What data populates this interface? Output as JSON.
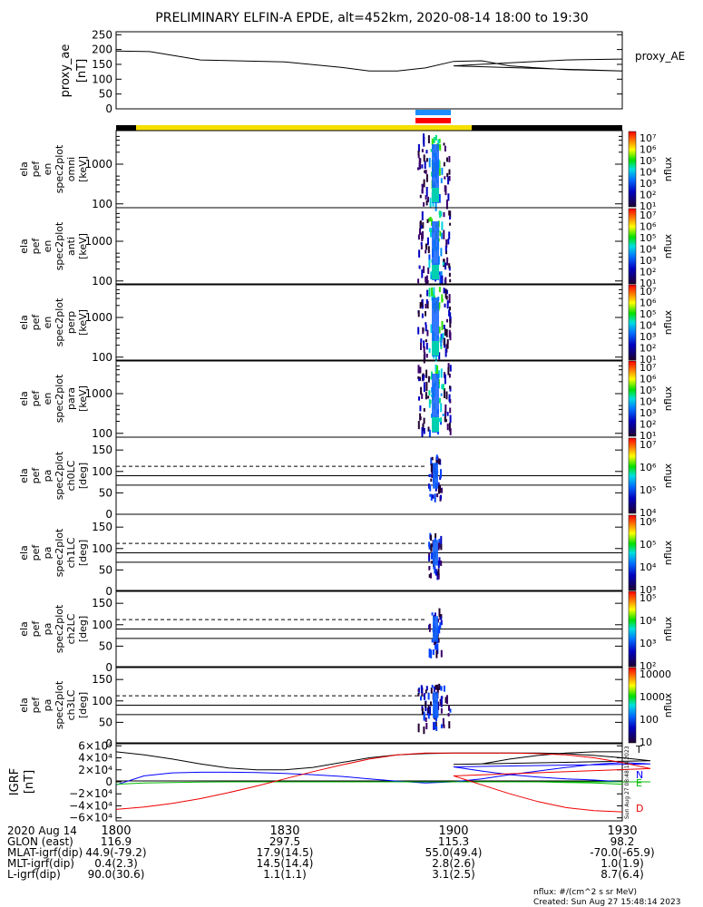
{
  "title": "PRELIMINARY ELFIN-A EPDE, alt=452km, 2020-08-14 18:00 to 19:30",
  "colors": {
    "sunlit_bar": "#f5e000",
    "shadow_bar": "#000000",
    "science_blue": "#1a8cff",
    "science_red": "#ff0000",
    "igrf_n": "#0000ff",
    "igrf_e": "#00bb00",
    "igrf_d": "#ee0000",
    "igrf_total": "#000000"
  },
  "colorbar_labels": {
    "energy_flux": [
      "10⁷",
      "10⁶",
      "10⁵",
      "10⁴",
      "10³",
      "10²",
      "10¹"
    ],
    "pa_ch0": [
      "10⁷",
      "10⁶",
      "10⁵",
      "10⁴"
    ],
    "pa_ch1": [
      "10⁶",
      "10⁵",
      "10⁴",
      "10³"
    ],
    "pa_ch2": [
      "10⁵",
      "10⁴",
      "10³",
      "10²"
    ],
    "pa_ch3": [
      "10000",
      "1000",
      "100",
      "10"
    ],
    "unit": "nflux"
  },
  "chart_data": [
    {
      "type": "line",
      "name": "proxy_ae",
      "ylabel": "proxy_ae [nT]",
      "legend": "proxy_AE",
      "ylim": [
        0,
        260
      ],
      "yticks": [
        "250",
        "200",
        "150",
        "100",
        "50",
        "0"
      ],
      "x": [
        1800,
        1806,
        1815,
        1830,
        1840,
        1845,
        1850,
        1855,
        1860,
        1865,
        1870,
        1875,
        1880,
        1890,
        1900,
        1910,
        1920,
        1930
      ],
      "values": [
        195,
        193,
        165,
        158,
        140,
        128,
        128,
        138,
        160,
        162,
        145,
        138,
        132,
        128,
        145,
        155,
        165,
        168
      ]
    },
    {
      "type": "heatmap",
      "name": "spec2plot_omni",
      "ylabel_lines": [
        "ela",
        "pef",
        "en",
        "spec2plot",
        "omni",
        "[keV]"
      ],
      "y_scale": "log",
      "yticks": [
        "1000",
        "100"
      ],
      "x_range": [
        1868,
        1870
      ],
      "y_range_keV": [
        80,
        7000
      ]
    },
    {
      "type": "heatmap",
      "name": "spec2plot_anti",
      "ylabel_lines": [
        "ela",
        "pef",
        "en",
        "spec2plot",
        "anti",
        "[keV]"
      ],
      "y_scale": "log",
      "yticks": [
        "1000",
        "100"
      ],
      "x_range": [
        1868,
        1870
      ],
      "y_range_keV": [
        80,
        7000
      ]
    },
    {
      "type": "heatmap",
      "name": "spec2plot_perp",
      "ylabel_lines": [
        "ela",
        "pef",
        "en",
        "spec2plot",
        "perp",
        "[keV]"
      ],
      "y_scale": "log",
      "yticks": [
        "1000",
        "100"
      ],
      "x_range": [
        1868,
        1870
      ],
      "y_range_keV": [
        80,
        7000
      ]
    },
    {
      "type": "heatmap",
      "name": "spec2plot_para",
      "ylabel_lines": [
        "ela",
        "pef",
        "en",
        "spec2plot",
        "para",
        "[keV]"
      ],
      "y_scale": "log",
      "yticks": [
        "1000",
        "100"
      ],
      "x_range": [
        1868,
        1870
      ],
      "y_range_keV": [
        80,
        7000
      ]
    },
    {
      "type": "heatmap",
      "name": "spec2plot_ch0LC",
      "ylabel_lines": [
        "ela",
        "pef",
        "pa",
        "spec2plot",
        "ch0LC",
        "[deg]"
      ],
      "yticks": [
        "150",
        "100",
        "50",
        "0"
      ],
      "ylim": [
        0,
        180
      ],
      "ref_lines_deg": {
        "dashed": 112,
        "solid": [
          90,
          68
        ]
      }
    },
    {
      "type": "heatmap",
      "name": "spec2plot_ch1LC",
      "ylabel_lines": [
        "ela",
        "pef",
        "pa",
        "spec2plot",
        "ch1LC",
        "[deg]"
      ],
      "yticks": [
        "150",
        "100",
        "50",
        "0"
      ],
      "ylim": [
        0,
        180
      ],
      "ref_lines_deg": {
        "dashed": 112,
        "solid": [
          90,
          68
        ]
      }
    },
    {
      "type": "heatmap",
      "name": "spec2plot_ch2LC",
      "ylabel_lines": [
        "ela",
        "pef",
        "pa",
        "spec2plot",
        "ch2LC",
        "[deg]"
      ],
      "yticks": [
        "150",
        "100",
        "50",
        "0"
      ],
      "ylim": [
        0,
        180
      ],
      "ref_lines_deg": {
        "dashed": 112,
        "solid": [
          90,
          68
        ]
      }
    },
    {
      "type": "heatmap",
      "name": "spec2plot_ch3LC",
      "ylabel_lines": [
        "ela",
        "pef",
        "pa",
        "spec2plot",
        "ch3LC",
        "[deg]"
      ],
      "yticks": [
        "150",
        "100",
        "50",
        "0"
      ],
      "ylim": [
        0,
        180
      ],
      "ref_lines_deg": {
        "dashed": 112,
        "solid": [
          90,
          68
        ]
      }
    },
    {
      "type": "line",
      "name": "igrf",
      "ylabel": "IGRF [nT]",
      "yticks": [
        "6×10⁴",
        "4×10⁴",
        "2×10⁴",
        "0",
        "−2×10⁴",
        "−4×10⁴",
        "−6×10⁴"
      ],
      "ylim": [
        -65000,
        65000
      ],
      "x": [
        1800,
        1805,
        1810,
        1815,
        1820,
        1825,
        1830,
        1835,
        1840,
        1845,
        1850,
        1855,
        1860,
        1865,
        1870,
        1875,
        1880,
        1885,
        1890,
        1895,
        1900,
        1905,
        1910,
        1915,
        1920,
        1925,
        1930
      ],
      "series": [
        {
          "name": "T",
          "values": [
            50000,
            45000,
            38000,
            30000,
            23000,
            20000,
            20000,
            24000,
            32000,
            40000,
            45000,
            47000,
            48000,
            48000,
            48000,
            48000,
            47000,
            44000,
            40000,
            35000,
            29000,
            30000,
            38000,
            44000,
            48000,
            50000,
            50000
          ]
        },
        {
          "name": "N",
          "values": [
            -5000,
            10000,
            15000,
            16000,
            16000,
            15500,
            14000,
            12000,
            9000,
            5000,
            1000,
            -2000,
            0,
            5000,
            12000,
            18000,
            24000,
            29000,
            32000,
            30000,
            25000,
            18000,
            12000,
            8000,
            5000,
            3000,
            0
          ]
        },
        {
          "name": "E",
          "values": [
            -4000,
            -2000,
            -1000,
            -500,
            0,
            0,
            0,
            0,
            0,
            0,
            0,
            0,
            0,
            0,
            0,
            0,
            0,
            0,
            0,
            0,
            0,
            0,
            0,
            0,
            -1000,
            -2000,
            -4000
          ]
        },
        {
          "name": "D",
          "values": [
            -46000,
            -42000,
            -36000,
            -28000,
            -18000,
            -7000,
            5000,
            17000,
            28000,
            38000,
            45000,
            48000,
            48000,
            48000,
            48000,
            47000,
            45000,
            40000,
            32000,
            22000,
            10000,
            -5000,
            -20000,
            -33000,
            -43000,
            -48000,
            -50000
          ]
        }
      ]
    }
  ],
  "xaxis": {
    "tick_labels": [
      "1800",
      "1830",
      "1900",
      "1930"
    ],
    "rows": [
      {
        "label": "2020 Aug 14",
        "values": [
          "",
          "",
          "",
          ""
        ]
      },
      {
        "label": "GLON (east)",
        "values": [
          "116.9",
          "297.5",
          "115.3",
          "98.2"
        ]
      },
      {
        "label": "MLAT-igrf(dip)",
        "values": [
          "44.9(-79.2)",
          "17.9(14.5)",
          "55.0(49.4)",
          "-70.0(-65.9)"
        ]
      },
      {
        "label": "MLT-igrf(dip)",
        "values": [
          "0.4(2.3)",
          "14.5(14.4)",
          "2.8(2.6)",
          "1.0(1.9)"
        ]
      },
      {
        "label": "L-igrf(dip)",
        "values": [
          "90.0(30.6)",
          "1.1(1.1)",
          "3.1(2.5)",
          "8.7(6.4)"
        ]
      }
    ]
  },
  "igrf_side_text": "Sun Aug 27 08:48:14 2023",
  "footer": {
    "units": "nflux: #/(cm^2 s sr MeV)",
    "created": "Created: Sun Aug 27 15:48:14 2023"
  }
}
